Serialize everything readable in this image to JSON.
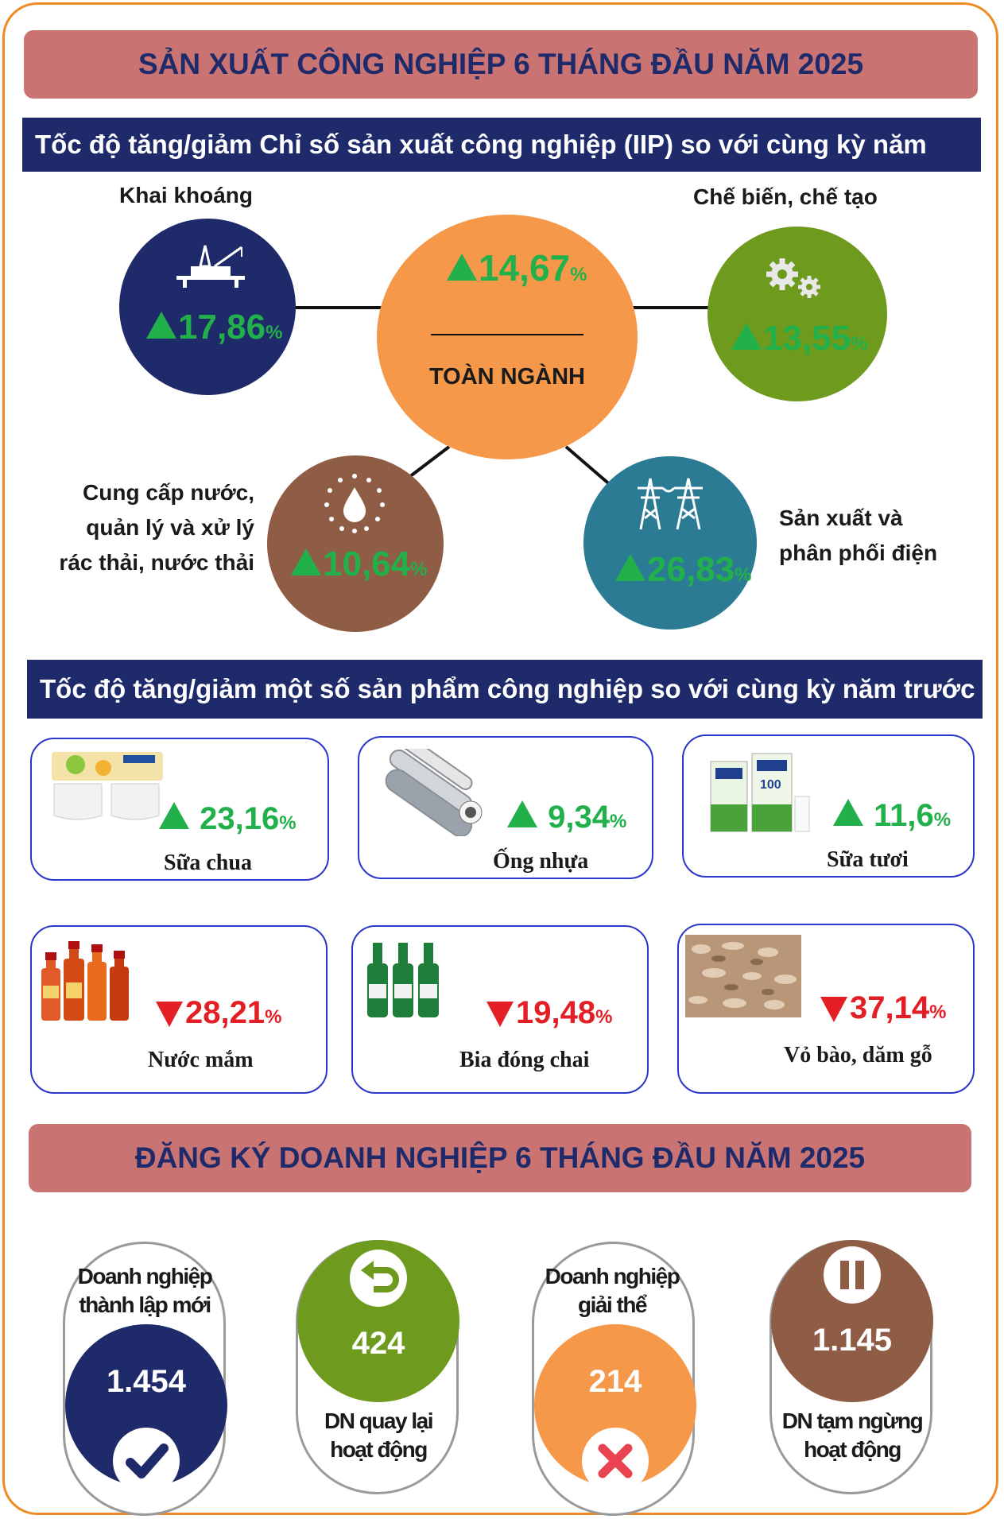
{
  "header": {
    "title": "SẢN XUẤT CÔNG NGHIỆP 6 THÁNG ĐẦU NĂM 2025"
  },
  "iip": {
    "heading": "Tốc độ tăng/giảm Chỉ số sản xuất công nghiệp (IIP) so với cùng kỳ năm trước",
    "center": {
      "value": "14,67",
      "unit": "%",
      "label": "TOÀN NGÀNH",
      "color": "#f5984a"
    },
    "mining": {
      "label": "Khai khoáng",
      "value": "17,86",
      "unit": "%",
      "icon": "oil-rig-icon",
      "color": "#1f2a6b"
    },
    "manufacturing": {
      "label": "Chế biến, chế tạo",
      "value": "13,55",
      "unit": "%",
      "icon": "gears-icon",
      "color": "#6e9a1e"
    },
    "water": {
      "label_lines": [
        "Cung cấp nước,",
        "quản lý và xử lý",
        "rác thải, nước thải"
      ],
      "value": "10,64",
      "unit": "%",
      "icon": "water-drop-icon",
      "color": "#8f5d46"
    },
    "electricity": {
      "label_lines": [
        "Sản xuất và",
        "phân phối điện"
      ],
      "value": "26,83",
      "unit": "%",
      "icon": "power-tower-icon",
      "color": "#2c7b95"
    }
  },
  "products": {
    "heading": "Tốc độ tăng/giảm một số sản phẩm công nghiệp so với cùng kỳ năm trước",
    "items": [
      {
        "name": "Sữa chua",
        "value": "23,16",
        "unit": "%",
        "trend": "up",
        "icon": "yogurt-image"
      },
      {
        "name": "Ống nhựa",
        "value": "9,34",
        "unit": "%",
        "trend": "up",
        "icon": "plastic-pipes-image"
      },
      {
        "name": "Sữa tươi",
        "value": "11,6",
        "unit": "%",
        "trend": "up",
        "icon": "fresh-milk-image"
      },
      {
        "name": "Nước mắm",
        "value": "28,21",
        "unit": "%",
        "trend": "down",
        "icon": "fish-sauce-image"
      },
      {
        "name": "Bia đóng chai",
        "value": "19,48",
        "unit": "%",
        "trend": "down",
        "icon": "bottled-beer-image"
      },
      {
        "name": "Vỏ bào, dăm gỗ",
        "value": "37,14",
        "unit": "%",
        "trend": "down",
        "icon": "wood-chips-image"
      }
    ]
  },
  "business": {
    "title": "ĐĂNG KÝ DOANH NGHIỆP 6 THÁNG ĐẦU NĂM 2025",
    "new": {
      "label_lines": [
        "Doanh nghiệp",
        "thành lập mới"
      ],
      "value": "1.454",
      "icon": "check-icon",
      "color": "#1f2a6b"
    },
    "returned": {
      "label_lines": [
        "DN quay lại",
        "hoạt động"
      ],
      "value": "424",
      "icon": "return-arrow-icon",
      "color": "#6e9a1e"
    },
    "dissolved": {
      "label_lines": [
        "Doanh nghiệp",
        "giải thể"
      ],
      "value": "214",
      "icon": "cross-icon",
      "color": "#f5984a"
    },
    "suspended": {
      "label_lines": [
        "DN tạm ngừng",
        "hoạt động"
      ],
      "value": "1.145",
      "icon": "pause-icon",
      "color": "#8f5d46"
    }
  },
  "colors": {
    "up": "#21b04a",
    "down": "#e31e24",
    "banner": "#c97472",
    "navy": "#1f2a6b",
    "border": "#f08a24"
  }
}
